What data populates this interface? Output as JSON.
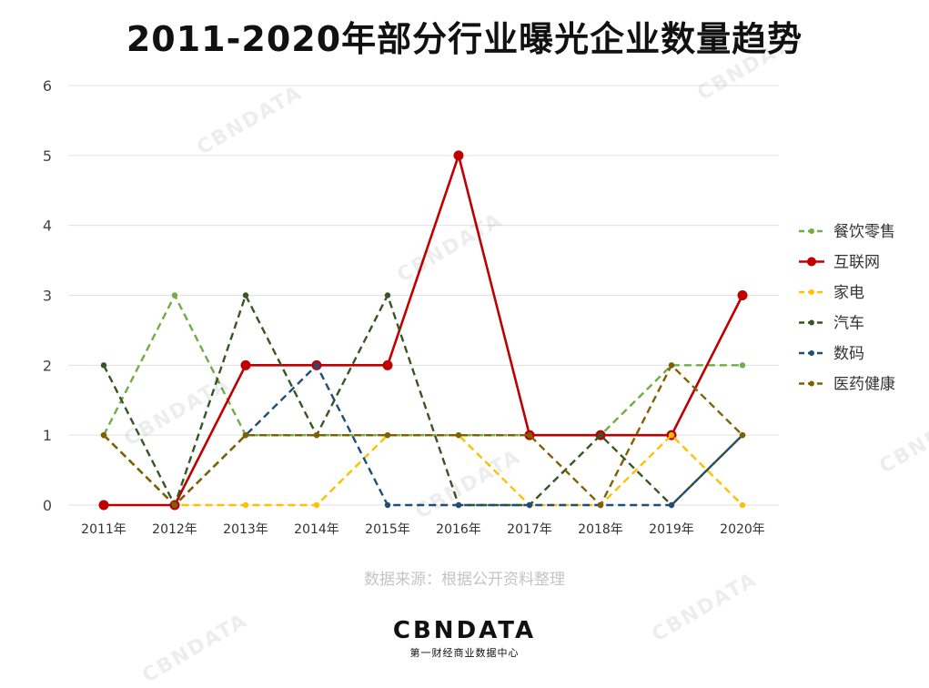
{
  "brand": {
    "logo": "CBNDATA",
    "subtitle": "第一财经商业数据中心",
    "watermark": "CBNDATA"
  },
  "source_note": "数据来源：根据公开资料整理",
  "chart_data": {
    "type": "line",
    "title": "2011-2020年部分行业曝光企业数量趋势",
    "xlabel": "",
    "ylabel": "",
    "categories": [
      "2011年",
      "2012年",
      "2013年",
      "2014年",
      "2015年",
      "2016年",
      "2017年",
      "2018年",
      "2019年",
      "2020年"
    ],
    "ylim": [
      0,
      6
    ],
    "yticks": [
      0,
      1,
      2,
      3,
      4,
      5,
      6
    ],
    "grid": true,
    "legend_position": "right",
    "series": [
      {
        "name": "餐饮零售",
        "color": "#70ad47",
        "style": "dashed",
        "values": [
          1,
          3,
          1,
          1,
          1,
          1,
          1,
          1,
          2,
          2
        ]
      },
      {
        "name": "互联网",
        "color": "#c00000",
        "style": "solid",
        "values": [
          0,
          0,
          2,
          2,
          2,
          5,
          1,
          1,
          1,
          3
        ]
      },
      {
        "name": "家电",
        "color": "#ffc000",
        "style": "dashed",
        "values": [
          1,
          0,
          0,
          0,
          1,
          1,
          0,
          0,
          1,
          0
        ]
      },
      {
        "name": "汽车",
        "color": "#375623",
        "style": "dashed",
        "values": [
          2,
          0,
          3,
          1,
          3,
          0,
          0,
          1,
          0,
          1
        ]
      },
      {
        "name": "数码",
        "color": "#1f4e79",
        "style": "dashed",
        "values": [
          1,
          0,
          1,
          2,
          0,
          0,
          0,
          0,
          0,
          1
        ]
      },
      {
        "name": "医药健康",
        "color": "#806000",
        "style": "dashed",
        "values": [
          1,
          0,
          1,
          1,
          1,
          1,
          1,
          0,
          2,
          1
        ]
      }
    ]
  }
}
